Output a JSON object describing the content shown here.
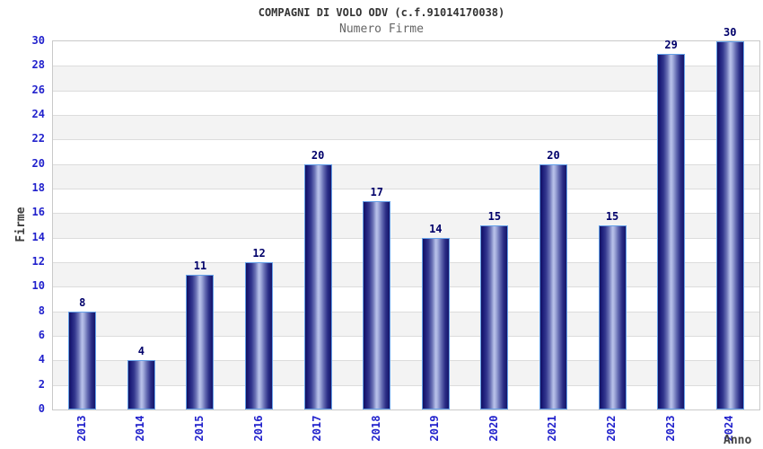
{
  "chart_data": {
    "type": "bar",
    "title": "COMPAGNI DI VOLO ODV (c.f.91014170038)",
    "subtitle": "Numero Firme",
    "xlabel": "Anno",
    "ylabel": "Firme",
    "categories": [
      "2013",
      "2014",
      "2015",
      "2016",
      "2017",
      "2018",
      "2019",
      "2020",
      "2021",
      "2022",
      "2023",
      "2024"
    ],
    "values": [
      8,
      4,
      11,
      12,
      20,
      17,
      14,
      15,
      20,
      15,
      29,
      30
    ],
    "ylim": [
      0,
      30
    ],
    "ytick_step": 2,
    "legend": "none",
    "grid": "horizontal-bands",
    "colors": {
      "bar_dark": "#14146e",
      "bar_light": "#b9c1ea",
      "bar_border": "#64a0e8",
      "tick_label": "#2121cc",
      "value_label": "#00006a",
      "title": "#333333",
      "subtitle": "#666666",
      "axis_title": "#444444",
      "band_fill": "#f3f3f3",
      "gridline": "#dcdcdc",
      "plot_border": "#c9c9c9"
    }
  }
}
